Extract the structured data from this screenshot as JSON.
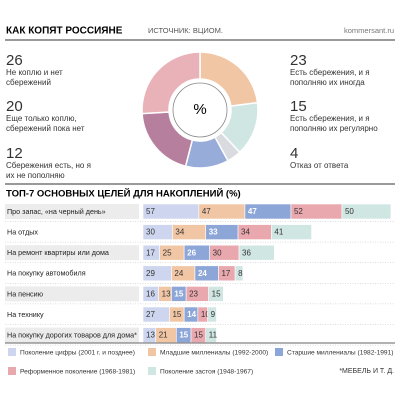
{
  "header": {
    "title": "КАК КОПЯТ РОССИЯНЕ",
    "source": "ИСТОЧНИК: ВЦИОМ.",
    "site": "kommersant.ru"
  },
  "chart_data": [
    {
      "type": "pie",
      "center_label": "%",
      "categories": [
        "Есть сбережения, и я пополняю их иногда",
        "Есть сбережения, и я пополняю их регулярно",
        "Отказ от ответа",
        "Сбережения есть, но я их не пополняю",
        "Еще только коплю, сбережений пока нет",
        "Не коплю и нет сбережений"
      ],
      "values": [
        23,
        15,
        4,
        12,
        20,
        26
      ],
      "colors": [
        "#f1c6a4",
        "#cfe6e3",
        "#d9dbe0",
        "#98acd9",
        "#b77f9e",
        "#e9b1b8"
      ]
    },
    {
      "type": "bar",
      "orientation": "horizontal",
      "stacked": true,
      "title": "ТОП-7 ОСНОВНЫХ ЦЕЛЕЙ ДЛЯ НАКОПЛЕНИЙ (%)",
      "categories": [
        "Про запас, «на черный день»",
        "На отдых",
        "На ремонт квартиры или дома",
        "На покупку автомобиля",
        "На пенсию",
        "На технику",
        "На покупку дорогих товаров для дома*"
      ],
      "series": [
        {
          "name": "Поколение цифры (2001 г. и позднее)",
          "color": "#cdd6ee",
          "values": [
            57,
            30,
            17,
            29,
            16,
            27,
            13
          ]
        },
        {
          "name": "Младшие миллениалы (1992-2000)",
          "color": "#f1c6a4",
          "values": [
            47,
            34,
            25,
            24,
            13,
            15,
            21
          ]
        },
        {
          "name": "Старшие миллениалы (1982-1991)",
          "color": "#8da6d8",
          "values": [
            47,
            33,
            26,
            24,
            15,
            14,
            15
          ]
        },
        {
          "name": "Реформенное поколение (1968-1981)",
          "color": "#e9a7ae",
          "values": [
            52,
            34,
            30,
            17,
            23,
            10,
            15
          ]
        },
        {
          "name": "Поколение застоя (1948-1967)",
          "color": "#cfe6e3",
          "values": [
            50,
            41,
            36,
            8,
            15,
            9,
            11
          ]
        }
      ],
      "footnote": "*МЕБЕЛЬ И Т. Д."
    }
  ]
}
